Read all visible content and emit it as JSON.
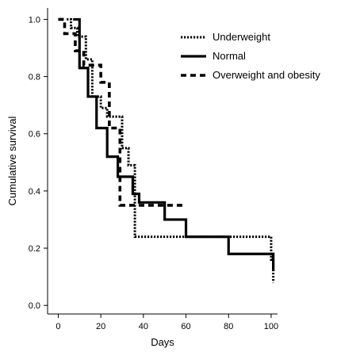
{
  "chart_data": {
    "type": "line",
    "step": true,
    "title": "",
    "xlabel": "Days",
    "ylabel": "Cumulative survival",
    "xlim": [
      -5,
      103
    ],
    "ylim": [
      -0.03,
      1.04
    ],
    "xticks": [
      0,
      20,
      40,
      60,
      80,
      100
    ],
    "yticks": [
      0.0,
      0.2,
      0.4,
      0.6,
      0.8,
      1.0
    ],
    "ytick_labels": [
      "0.0",
      "0.2",
      "0.4",
      "0.6",
      "0.8",
      "1.0"
    ],
    "grid": false,
    "legend_position": "top-right",
    "series": [
      {
        "name": "Underweight",
        "style": "dotted",
        "x": [
          4,
          6,
          9,
          13,
          16,
          20,
          23,
          26,
          29,
          30,
          33,
          35,
          36,
          60,
          100,
          101
        ],
        "y": [
          1.0,
          0.97,
          0.94,
          0.86,
          0.73,
          0.69,
          0.66,
          0.66,
          0.66,
          0.55,
          0.49,
          0.49,
          0.24,
          0.24,
          0.16,
          0.08
        ]
      },
      {
        "name": "Normal",
        "style": "solid",
        "x": [
          7,
          10,
          14,
          18,
          23,
          28,
          30,
          35,
          38,
          40,
          50,
          60,
          80,
          100,
          101
        ],
        "y": [
          1.0,
          0.83,
          0.73,
          0.62,
          0.52,
          0.45,
          0.45,
          0.39,
          0.36,
          0.36,
          0.3,
          0.24,
          0.18,
          0.18,
          0.12
        ]
      },
      {
        "name": "Overweight and obesity",
        "style": "dashed",
        "x": [
          0,
          3,
          8,
          12,
          15,
          20,
          24,
          27,
          29,
          30,
          40,
          60
        ],
        "y": [
          1.0,
          0.95,
          0.89,
          0.84,
          0.84,
          0.78,
          0.62,
          0.62,
          0.35,
          0.35,
          0.35,
          0.35
        ]
      }
    ]
  },
  "colors": {
    "line": "#000000",
    "background": "#ffffff"
  }
}
